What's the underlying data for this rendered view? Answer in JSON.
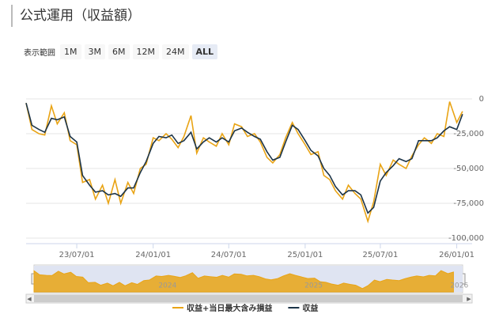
{
  "header": {
    "title": "公式運用（収益額）"
  },
  "range_selector": {
    "label": "表示範囲",
    "buttons": [
      "1M",
      "3M",
      "6M",
      "12M",
      "24M",
      "ALL"
    ],
    "selected": 5
  },
  "chart_data": {
    "type": "line",
    "x": [
      "23/03/01",
      "23/03/15",
      "23/04/01",
      "23/04/15",
      "23/05/01",
      "23/05/15",
      "23/06/01",
      "23/06/15",
      "23/07/01",
      "23/07/15",
      "23/08/01",
      "23/08/15",
      "23/09/01",
      "23/09/15",
      "23/10/01",
      "23/10/15",
      "23/11/01",
      "23/11/15",
      "23/12/01",
      "23/12/15",
      "24/01/01",
      "24/01/15",
      "24/02/01",
      "24/02/15",
      "24/03/01",
      "24/03/15",
      "24/04/01",
      "24/04/15",
      "24/05/01",
      "24/05/15",
      "24/06/01",
      "24/06/15",
      "24/07/01",
      "24/07/15",
      "24/08/01",
      "24/08/15",
      "24/09/01",
      "24/09/15",
      "24/10/01",
      "24/10/15",
      "24/11/01",
      "24/11/15",
      "24/12/01",
      "24/12/15",
      "25/01/01",
      "25/01/15",
      "25/02/01",
      "25/02/15",
      "25/03/01",
      "25/03/15",
      "25/04/01",
      "25/04/15",
      "25/05/01",
      "25/05/15",
      "25/06/01",
      "25/06/15",
      "25/07/01",
      "25/07/15",
      "25/08/01",
      "25/08/15",
      "25/09/01",
      "25/09/15",
      "25/10/01",
      "25/10/15",
      "25/11/01",
      "25/11/15",
      "25/12/01",
      "25/12/15",
      "26/01/01",
      "26/01/15"
    ],
    "series": [
      {
        "name": "収益+当日最大含み損益",
        "color": "#e9a415",
        "values": [
          -3000,
          -22000,
          -25000,
          -26000,
          -5000,
          -18000,
          -10000,
          -30000,
          -33000,
          -60000,
          -58000,
          -72000,
          -62000,
          -75000,
          -58000,
          -75000,
          -60000,
          -68000,
          -50000,
          -47000,
          -28000,
          -30000,
          -25000,
          -29000,
          -35000,
          -27000,
          -12000,
          -39000,
          -28000,
          -31000,
          -34000,
          -25000,
          -33000,
          -18000,
          -20000,
          -27000,
          -25000,
          -31000,
          -42000,
          -46000,
          -40000,
          -28000,
          -17000,
          -25000,
          -33000,
          -40000,
          -38000,
          -55000,
          -58000,
          -66000,
          -72000,
          -62000,
          -68000,
          -72000,
          -88000,
          -74000,
          -47000,
          -55000,
          -44000,
          -47000,
          -50000,
          -41000,
          -33000,
          -28000,
          -32000,
          -25000,
          -27000,
          -2000,
          -17000,
          -9000
        ]
      },
      {
        "name": "収益",
        "color": "#1c3448",
        "values": [
          -3000,
          -19000,
          -22000,
          -24000,
          -14000,
          -15000,
          -13000,
          -27000,
          -31000,
          -55000,
          -62000,
          -67000,
          -66000,
          -69000,
          -68000,
          -70000,
          -64000,
          -64000,
          -53000,
          -45000,
          -32000,
          -27000,
          -28000,
          -26000,
          -32000,
          -30000,
          -24000,
          -36000,
          -31000,
          -28000,
          -31000,
          -28000,
          -31000,
          -23000,
          -21000,
          -24000,
          -27000,
          -29000,
          -38000,
          -44000,
          -42000,
          -31000,
          -19000,
          -22000,
          -30000,
          -37000,
          -41000,
          -50000,
          -55000,
          -63000,
          -69000,
          -66000,
          -66000,
          -69000,
          -82000,
          -78000,
          -59000,
          -53000,
          -48000,
          -43000,
          -45000,
          -43000,
          -30000,
          -30000,
          -30000,
          -28000,
          -23000,
          -20000,
          -22000,
          -11000
        ]
      }
    ],
    "xlim": [
      "23/03/01",
      "26/02/07"
    ],
    "xticks": [
      "23/07/01",
      "24/01/01",
      "24/07/01",
      "25/01/01",
      "25/07/01",
      "26/01/01"
    ],
    "ylim": [
      -104000,
      21000
    ],
    "yticks": [
      0,
      {
        "value": -25000,
        "label": "-25,000"
      },
      {
        "value": -50000,
        "label": "-50,000"
      },
      {
        "value": -75000,
        "label": "-75,000"
      },
      {
        "value": -100000,
        "label": "-100,000"
      }
    ],
    "grid": true,
    "navigator": {
      "labels": [
        "2024",
        "2025",
        "2026"
      ]
    }
  }
}
